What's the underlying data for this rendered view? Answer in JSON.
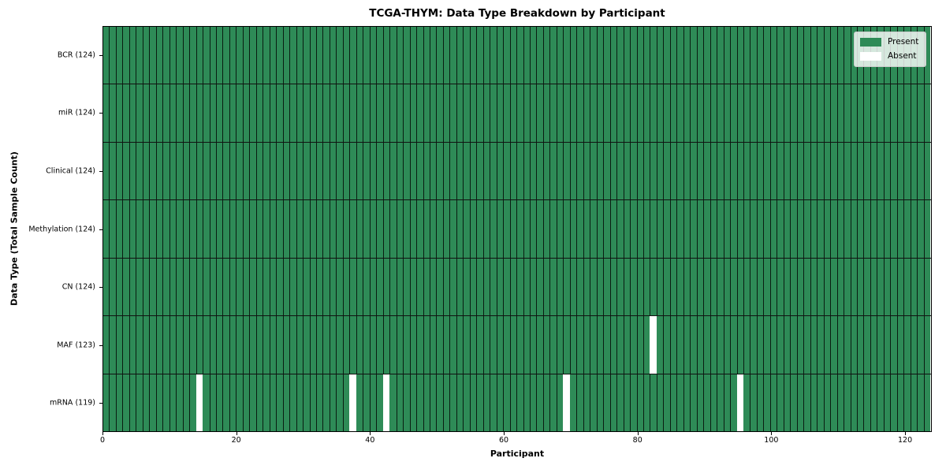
{
  "chart_data": {
    "type": "heatmap",
    "title": "TCGA-THYM: Data Type Breakdown by Participant",
    "xlabel": "Participant",
    "ylabel": "Data Type (Total Sample Count)",
    "n_participants": 124,
    "x_range": [
      0,
      124
    ],
    "x_ticks": [
      0,
      20,
      40,
      60,
      80,
      100,
      120
    ],
    "rows": [
      {
        "label": "BCR (124)",
        "data_type": "BCR",
        "present_count": 124,
        "absent_participants": []
      },
      {
        "label": "miR (124)",
        "data_type": "miR",
        "present_count": 124,
        "absent_participants": []
      },
      {
        "label": "Clinical (124)",
        "data_type": "Clinical",
        "present_count": 124,
        "absent_participants": []
      },
      {
        "label": "Methylation (124)",
        "data_type": "Methylation",
        "present_count": 124,
        "absent_participants": []
      },
      {
        "label": "CN (124)",
        "data_type": "CN",
        "present_count": 124,
        "absent_participants": []
      },
      {
        "label": "MAF (123)",
        "data_type": "MAF",
        "present_count": 123,
        "absent_participants": [
          82
        ]
      },
      {
        "label": "mRNA (119)",
        "data_type": "mRNA",
        "present_count": 119,
        "absent_participants": [
          14,
          37,
          42,
          69,
          95
        ]
      }
    ],
    "legend": [
      {
        "label": "Present",
        "color": "#2e8b57"
      },
      {
        "label": "Absent",
        "color": "#ffffff"
      }
    ],
    "colors": {
      "present": "#2e8b57",
      "absent": "#ffffff",
      "cell_edge": "rgba(0,0,0,0.8)",
      "row_divider": "#111111",
      "plot_border": "#000000"
    },
    "legend_position": "upper right",
    "grid": "per-cell vertical edges and row dividers"
  }
}
